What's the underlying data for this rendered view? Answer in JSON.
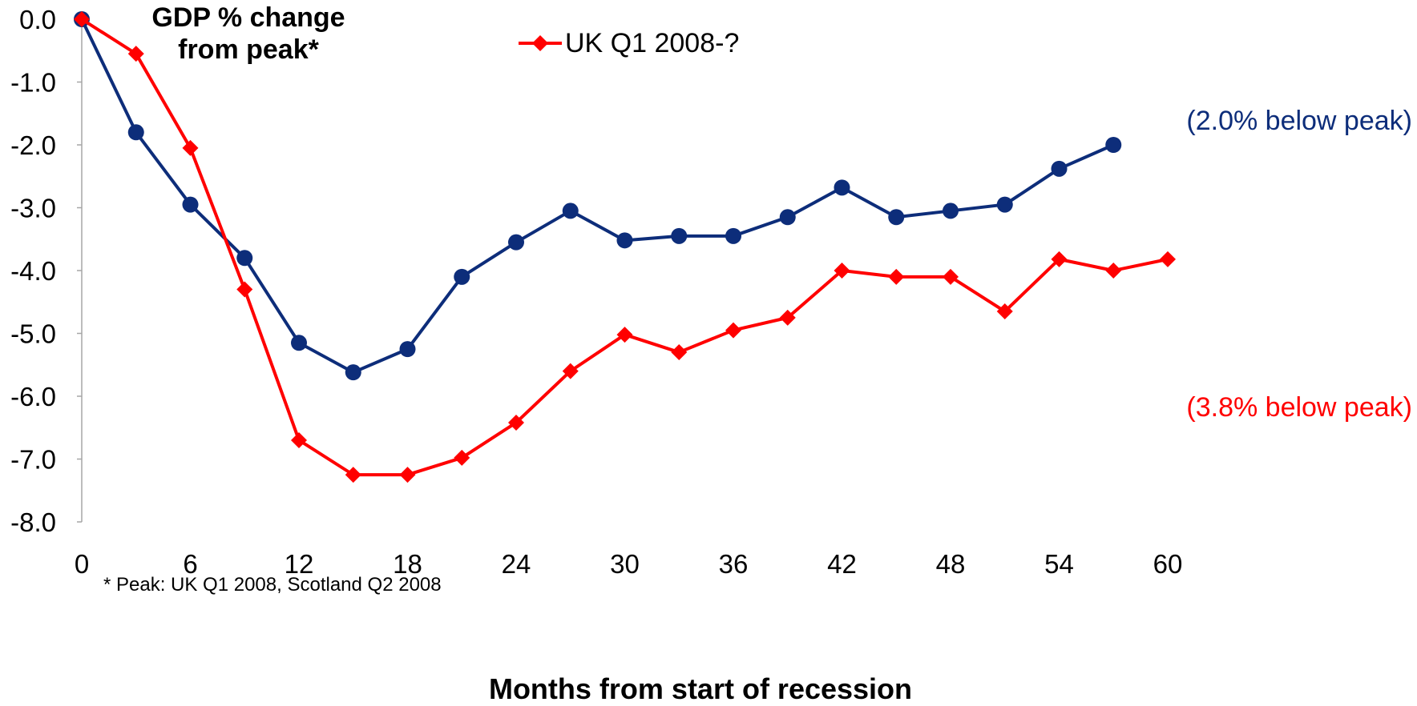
{
  "chart_data": {
    "type": "line",
    "title": "GDP % change from peak*",
    "xlabel": "Months from start of recession",
    "ylabel": "",
    "xlim": [
      0,
      60
    ],
    "ylim": [
      -8,
      0
    ],
    "x_ticks": [
      0,
      6,
      12,
      18,
      24,
      30,
      36,
      42,
      48,
      54,
      60
    ],
    "y_ticks": [
      "0.0",
      "-1.0",
      "-2.0",
      "-3.0",
      "-4.0",
      "-5.0",
      "-6.0",
      "-7.0",
      "-8.0"
    ],
    "grid": false,
    "legend_position": "top-center",
    "series": [
      {
        "name": "UK Q1 2008-?",
        "color": "#ff0000",
        "marker": "diamond",
        "x": [
          0,
          3,
          6,
          9,
          12,
          15,
          18,
          21,
          24,
          27,
          30,
          33,
          36,
          39,
          42,
          45,
          48,
          51,
          54,
          57,
          60
        ],
        "values": [
          0.0,
          -0.55,
          -2.05,
          -4.3,
          -6.7,
          -7.25,
          -7.25,
          -6.98,
          -6.42,
          -5.6,
          -5.02,
          -5.3,
          -4.95,
          -4.75,
          -4.0,
          -4.1,
          -4.1,
          -4.65,
          -3.82,
          -4.0,
          -3.82
        ]
      },
      {
        "name": "",
        "color": "#0d2d7a",
        "marker": "circle",
        "x": [
          0,
          3,
          6,
          9,
          12,
          15,
          18,
          21,
          24,
          27,
          30,
          33,
          36,
          39,
          42,
          45,
          48,
          51,
          54,
          57
        ],
        "values": [
          0.0,
          -1.8,
          -2.95,
          -3.8,
          -5.15,
          -5.62,
          -5.25,
          -4.1,
          -3.55,
          -3.05,
          -3.52,
          -3.45,
          -3.45,
          -3.15,
          -2.68,
          -3.15,
          -3.05,
          -2.95,
          -2.38,
          -2.0
        ]
      }
    ],
    "annotations": {
      "blue_end": "(2.0% below peak)",
      "red_end": "(3.8% below peak)",
      "footnote": "* Peak: UK Q1 2008, Scotland Q2 2008"
    }
  }
}
